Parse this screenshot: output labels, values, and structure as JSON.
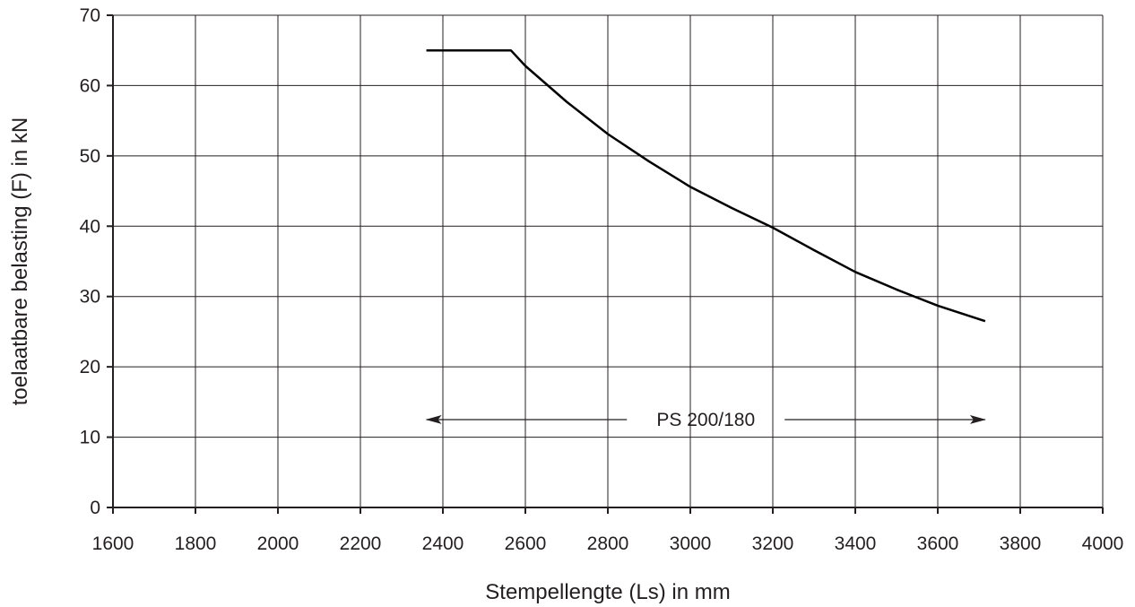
{
  "chart_data": {
    "type": "line",
    "xlabel": "Stempellengte (Ls) in mm",
    "ylabel": "toelaatbare belasting (F) in kN",
    "xlim": [
      1600,
      4000
    ],
    "ylim": [
      0,
      70
    ],
    "xticks": [
      1600,
      1800,
      2000,
      2200,
      2400,
      2600,
      2800,
      3000,
      3200,
      3400,
      3600,
      3800,
      4000
    ],
    "yticks": [
      0,
      10,
      20,
      30,
      40,
      50,
      60,
      70
    ],
    "grid": true,
    "series": [
      {
        "x": [
          2360,
          2400,
          2500,
          2565,
          2600,
          2700,
          2800,
          2900,
          3000,
          3100,
          3200,
          3300,
          3400,
          3500,
          3600,
          3715
        ],
        "y": [
          65,
          65,
          65,
          65,
          62.8,
          57.7,
          53.1,
          49.2,
          45.6,
          42.6,
          39.8,
          36.6,
          33.5,
          31.0,
          28.7,
          26.5
        ]
      }
    ],
    "annotations": [
      {
        "text": "PS 200/180",
        "x_range": [
          2360,
          3715
        ],
        "y": 12.5
      }
    ]
  }
}
